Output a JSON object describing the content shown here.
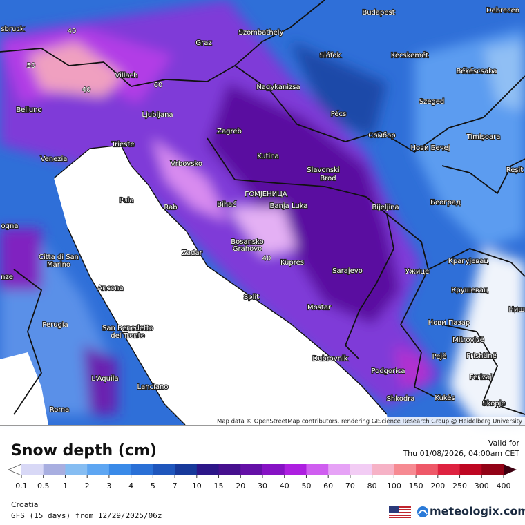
{
  "map": {
    "cities": [
      "sbruck",
      "Budapest",
      "Debrecen",
      "Szombathely",
      "Graz",
      "Siófok",
      "Kecskemét",
      "Békéscsaba",
      "Villach",
      "Nagykanizsa",
      "Belluno",
      "Ljubljana",
      "Pécs",
      "Szeged",
      "Zagreb",
      "Сомбор",
      "Timișoara",
      "Trieste",
      "Нови Бечеј",
      "Venezia",
      "Kutina",
      "Vrbovsko",
      "Slavonski",
      "Brod",
      "Reșit",
      "ГОМЈЕНИЦА",
      "Pula",
      "Bihać",
      "Banja Luka",
      "Bijeljina",
      "Београд",
      "Rab",
      "ogna",
      "Bosansko",
      "Grahovo",
      "Citta di San",
      "Marino",
      "Zadar",
      "Kupres",
      "Sarajevo",
      "Крагујевац",
      "Ужице",
      "nze",
      "Ancona",
      "Split",
      "Крушевац",
      "Mostar",
      "Ниш",
      "Perugia",
      "San Benedetto",
      "del Tronto",
      "Нови Пазар",
      "Mitrovicë",
      "Dubrovnik",
      "Pejë",
      "Prishtinë",
      "Podgorica",
      "L'Aquila",
      "Ferizaj",
      "Lanciano",
      "Shkodra",
      "Kukës",
      "Skopje",
      "Roma"
    ],
    "contour_labels": [
      "50",
      "40",
      "40",
      "60",
      "40"
    ],
    "attribution": "Map data © OpenStreetMap contributors, rendering GIScience Research Group @ Heidelberg University"
  },
  "legend": {
    "title": "Snow depth (cm)",
    "valid_label": "Valid for",
    "valid_time": "Thu 01/08/2026, 04:00am CET",
    "ticks": [
      0.1,
      0.5,
      1,
      2,
      3,
      4,
      5,
      7,
      10,
      15,
      20,
      30,
      40,
      50,
      60,
      70,
      80,
      100,
      150,
      200,
      250,
      300,
      400
    ],
    "under_color": "#ffffff",
    "colors": [
      "#d8d8f6",
      "#a8aee0",
      "#86bdf2",
      "#5ea6f2",
      "#3a8ae8",
      "#2a70d6",
      "#1f56bc",
      "#17399a",
      "#2c1688",
      "#46108e",
      "#6410a6",
      "#8612c4",
      "#ad1fe0",
      "#cf5ef0",
      "#e6a2f6",
      "#f2ccf4",
      "#f6b2c6",
      "#f68a92",
      "#ee5868",
      "#de2240",
      "#be0622",
      "#920216"
    ],
    "over_color": "#3e0010"
  },
  "footer": {
    "region": "Croatia",
    "model": "GFS (15 days) from  12/29/2025/06z",
    "brand": "meteologix.com"
  }
}
